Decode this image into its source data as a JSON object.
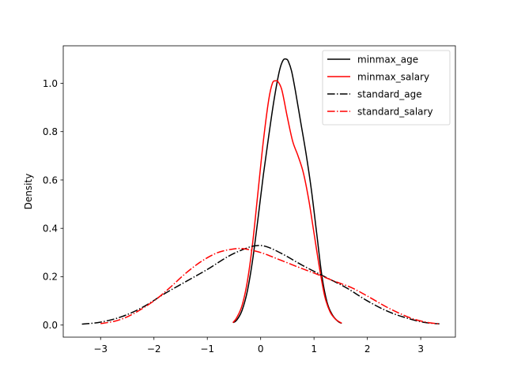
{
  "chart_data": {
    "type": "line",
    "title": "",
    "xlabel": "",
    "ylabel": "Density",
    "xlim": [
      -3.7,
      3.65
    ],
    "ylim": [
      -0.05,
      1.155
    ],
    "xticks": [
      -3,
      -2,
      -1,
      0,
      1,
      2,
      3
    ],
    "xtick_labels": [
      "−3",
      "−2",
      "−1",
      "0",
      "1",
      "2",
      "3"
    ],
    "yticks": [
      0.0,
      0.2,
      0.4,
      0.6,
      0.8,
      1.0
    ],
    "ytick_labels": [
      "0.0",
      "0.2",
      "0.4",
      "0.6",
      "0.8",
      "1.0"
    ],
    "grid": false,
    "legend_position": "top-right",
    "series": [
      {
        "name": "minmax_age",
        "color": "#000000",
        "style": "solid",
        "x": [
          -0.52,
          -0.45,
          -0.35,
          -0.25,
          -0.15,
          -0.05,
          0.05,
          0.15,
          0.25,
          0.35,
          0.42,
          0.48,
          0.52,
          0.58,
          0.65,
          0.75,
          0.85,
          0.95,
          1.05,
          1.15,
          1.25,
          1.35,
          1.45,
          1.52
        ],
        "y": [
          0.01,
          0.02,
          0.06,
          0.14,
          0.27,
          0.44,
          0.62,
          0.78,
          0.93,
          1.05,
          1.095,
          1.1,
          1.09,
          1.05,
          0.97,
          0.84,
          0.71,
          0.56,
          0.38,
          0.2,
          0.09,
          0.04,
          0.015,
          0.007
        ]
      },
      {
        "name": "minmax_salary",
        "color": "#ff0000",
        "style": "solid",
        "x": [
          -0.52,
          -0.45,
          -0.35,
          -0.25,
          -0.15,
          -0.05,
          0.05,
          0.15,
          0.22,
          0.28,
          0.33,
          0.4,
          0.5,
          0.6,
          0.7,
          0.8,
          0.9,
          1.0,
          1.1,
          1.2,
          1.3,
          1.4,
          1.5,
          1.52
        ],
        "y": [
          0.01,
          0.03,
          0.08,
          0.18,
          0.34,
          0.55,
          0.76,
          0.93,
          1.0,
          1.01,
          1.005,
          0.97,
          0.86,
          0.76,
          0.7,
          0.63,
          0.52,
          0.38,
          0.24,
          0.12,
          0.055,
          0.025,
          0.01,
          0.008
        ]
      },
      {
        "name": "standard_age",
        "color": "#000000",
        "style": "dashdot",
        "x": [
          -3.35,
          -3.0,
          -2.6,
          -2.2,
          -1.8,
          -1.4,
          -1.0,
          -0.6,
          -0.3,
          -0.1,
          0.1,
          0.4,
          0.8,
          1.2,
          1.6,
          2.0,
          2.4,
          2.8,
          3.1,
          3.35
        ],
        "y": [
          0.004,
          0.012,
          0.035,
          0.075,
          0.13,
          0.18,
          0.23,
          0.285,
          0.315,
          0.328,
          0.325,
          0.295,
          0.245,
          0.2,
          0.155,
          0.1,
          0.055,
          0.025,
          0.01,
          0.005
        ]
      },
      {
        "name": "standard_salary",
        "color": "#ff0000",
        "style": "dashdot",
        "x": [
          -3.0,
          -2.7,
          -2.4,
          -2.0,
          -1.7,
          -1.4,
          -1.1,
          -0.8,
          -0.5,
          -0.3,
          0.0,
          0.3,
          0.7,
          1.0,
          1.4,
          1.7,
          2.0,
          2.4,
          2.8,
          3.1,
          3.35
        ],
        "y": [
          0.006,
          0.018,
          0.045,
          0.1,
          0.155,
          0.215,
          0.265,
          0.3,
          0.315,
          0.315,
          0.3,
          0.275,
          0.24,
          0.215,
          0.18,
          0.155,
          0.12,
          0.07,
          0.03,
          0.012,
          0.005
        ]
      }
    ]
  }
}
